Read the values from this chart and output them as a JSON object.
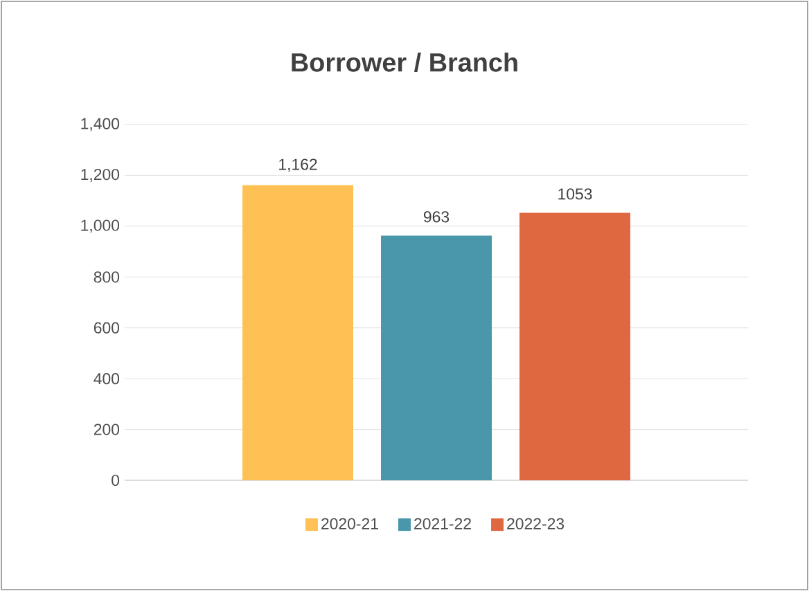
{
  "chart_data": {
    "type": "bar",
    "title": "Borrower / Branch",
    "categories": [
      null
    ],
    "series": [
      {
        "name": "2020-21",
        "color": "#ffc154",
        "values": [
          1162
        ],
        "value_labels": [
          "1,162"
        ]
      },
      {
        "name": "2021-22",
        "color": "#4a96aa",
        "values": [
          963
        ],
        "value_labels": [
          "963"
        ]
      },
      {
        "name": "2022-23",
        "color": "#e06840",
        "values": [
          1053
        ],
        "value_labels": [
          "1053"
        ]
      }
    ],
    "ylim": [
      0,
      1400
    ],
    "yticks": [
      0,
      200,
      400,
      600,
      800,
      {
        "value": 1000,
        "label": "1,000"
      },
      {
        "value": 1200,
        "label": "1,200"
      },
      {
        "value": 1400,
        "label": "1,400"
      }
    ],
    "grid": "y",
    "legend": "bottom"
  }
}
